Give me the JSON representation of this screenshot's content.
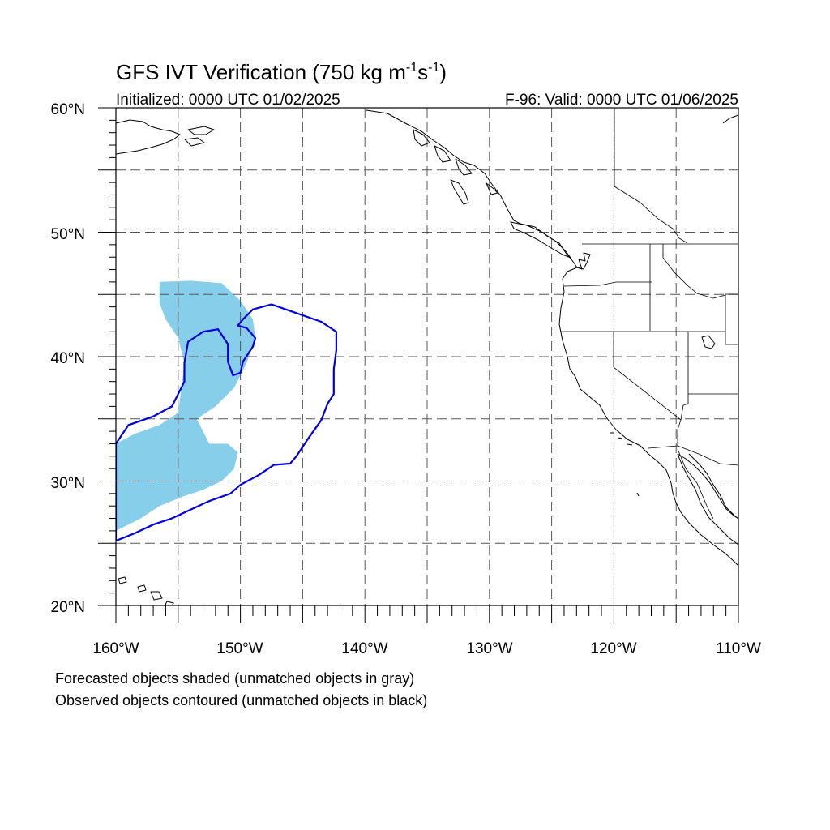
{
  "title": {
    "main": "GFS IVT Verification (750 kg m",
    "sup1": "-1",
    "mid": "s",
    "sup2": "-1",
    "end": ")"
  },
  "initialized": "Initialized: 0000 UTC 01/02/2025",
  "valid": "F-96: Valid: 0000 UTC 01/06/2025",
  "y_ticks": [
    "20°N",
    "30°N",
    "40°N",
    "50°N",
    "60°N"
  ],
  "x_ticks": [
    "160°W",
    "150°W",
    "140°W",
    "130°W",
    "120°W",
    "110°W"
  ],
  "notes": {
    "line1": "Forecasted objects shaded (unmatched objects in gray)",
    "line2": "Observed objects contoured (unmatched objects in black)"
  },
  "map": {
    "lon_range": [
      -160,
      -110
    ],
    "lat_range": [
      20,
      60
    ],
    "grid_spacing_deg": 5,
    "grid_style": "dashed",
    "forecast_color": "#87ceeb",
    "observed_color": "#0000dd",
    "forecast_object": [
      [
        -156.5,
        46
      ],
      [
        -154,
        46.1
      ],
      [
        -151.5,
        45.9
      ],
      [
        -150,
        44.5
      ],
      [
        -149,
        43
      ],
      [
        -148.8,
        41.5
      ],
      [
        -149.5,
        39.5
      ],
      [
        -150.5,
        37.5
      ],
      [
        -152,
        36
      ],
      [
        -153.5,
        35
      ],
      [
        -152.5,
        33
      ],
      [
        -151,
        33
      ],
      [
        -150.2,
        32.3
      ],
      [
        -150.5,
        31
      ],
      [
        -151.5,
        30
      ],
      [
        -153,
        29.3
      ],
      [
        -154.5,
        28.8
      ],
      [
        -156.5,
        28
      ],
      [
        -158,
        27
      ],
      [
        -160,
        26
      ],
      [
        -160,
        33
      ],
      [
        -158.5,
        33.8
      ],
      [
        -156.5,
        34.5
      ],
      [
        -155,
        35.5
      ],
      [
        -154.8,
        37
      ],
      [
        -154.5,
        39.5
      ],
      [
        -155,
        41.5
      ],
      [
        -156,
        43
      ],
      [
        -156.5,
        44.3
      ],
      [
        -156.5,
        46
      ]
    ],
    "observed_object": [
      [
        -160,
        25.2
      ],
      [
        -158.5,
        25.8
      ],
      [
        -157,
        26.5
      ],
      [
        -155.5,
        27
      ],
      [
        -154,
        27.7
      ],
      [
        -152.5,
        28.4
      ],
      [
        -150.8,
        29
      ],
      [
        -150,
        29.7
      ],
      [
        -148.5,
        30.5
      ],
      [
        -147.3,
        31.3
      ],
      [
        -146,
        31.4
      ],
      [
        -145.5,
        32
      ],
      [
        -144.5,
        33.5
      ],
      [
        -143.5,
        34.9
      ],
      [
        -143,
        36.2
      ],
      [
        -142.5,
        37
      ],
      [
        -142.5,
        39
      ],
      [
        -142.3,
        40.5
      ],
      [
        -142.3,
        42
      ],
      [
        -143.5,
        42.8
      ],
      [
        -145.5,
        43.5
      ],
      [
        -147.5,
        44.2
      ],
      [
        -149,
        43.8
      ],
      [
        -149.8,
        43
      ],
      [
        -150.2,
        42.5
      ],
      [
        -149.5,
        42.3
      ],
      [
        -148.8,
        41.5
      ],
      [
        -149,
        40.8
      ],
      [
        -149.8,
        39.6
      ],
      [
        -150,
        38.7
      ],
      [
        -150.6,
        38.5
      ],
      [
        -151,
        39.6
      ],
      [
        -151,
        41
      ],
      [
        -151.8,
        42.2
      ],
      [
        -153,
        42
      ],
      [
        -154.2,
        41.2
      ],
      [
        -154.5,
        39.5
      ],
      [
        -154.5,
        38
      ],
      [
        -155,
        37
      ],
      [
        -155.5,
        36
      ],
      [
        -157,
        35.2
      ],
      [
        -159,
        34.5
      ],
      [
        -160,
        33
      ]
    ]
  }
}
